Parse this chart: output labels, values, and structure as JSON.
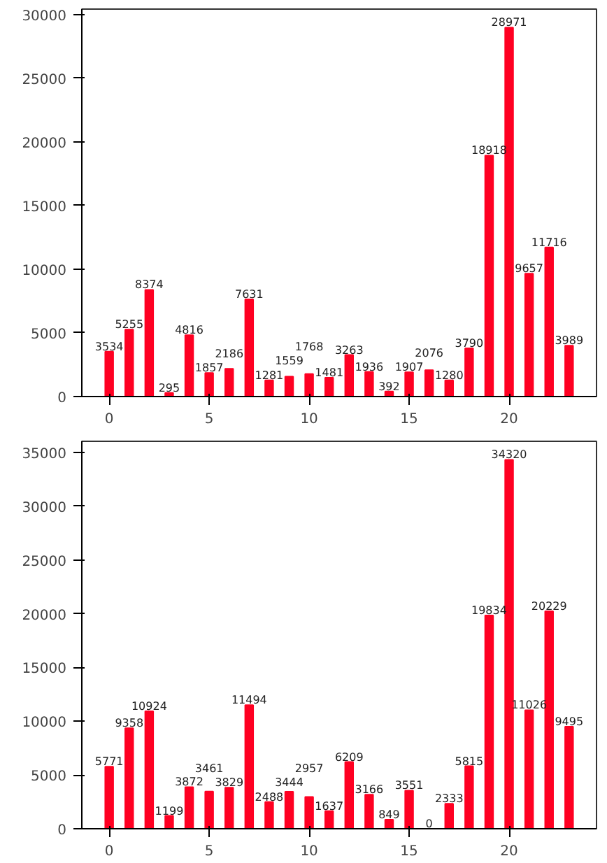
{
  "chart_data": [
    {
      "type": "bar",
      "x": [
        0,
        1,
        2,
        3,
        4,
        5,
        6,
        7,
        8,
        9,
        10,
        11,
        12,
        13,
        14,
        15,
        16,
        17,
        18,
        19,
        20,
        21,
        22,
        23
      ],
      "values": [
        3534,
        5255,
        8374,
        295,
        4816,
        1857,
        2186,
        7631,
        1281,
        1559,
        1768,
        1481,
        3263,
        1936,
        392,
        1907,
        2076,
        1280,
        3790,
        18918,
        28971,
        9657,
        11716,
        3989
      ],
      "color": "#ff0022",
      "xlim": [
        -1.37,
        24.37
      ],
      "ylim": [
        0,
        30420
      ],
      "xticks": [
        0,
        5,
        10,
        15,
        20
      ],
      "yticks": [
        0,
        5000,
        10000,
        15000,
        20000,
        25000,
        30000
      ],
      "data_labels": true,
      "grid": false
    },
    {
      "type": "bar",
      "x": [
        0,
        1,
        2,
        3,
        4,
        5,
        6,
        7,
        8,
        9,
        10,
        11,
        12,
        13,
        14,
        15,
        16,
        17,
        18,
        19,
        20,
        21,
        22,
        23
      ],
      "values": [
        5771,
        9358,
        10924,
        1199,
        3872,
        3461,
        3829,
        11494,
        2488,
        3444,
        2957,
        1637,
        6209,
        3166,
        849,
        3551,
        0,
        2333,
        5815,
        19834,
        34320,
        11026,
        20229,
        9495
      ],
      "color": "#ff0022",
      "xlim": [
        -1.37,
        24.37
      ],
      "ylim": [
        0,
        36036
      ],
      "xticks": [
        0,
        5,
        10,
        15,
        20
      ],
      "yticks": [
        0,
        5000,
        10000,
        15000,
        20000,
        25000,
        30000,
        35000
      ],
      "data_labels": true,
      "grid": false
    }
  ]
}
